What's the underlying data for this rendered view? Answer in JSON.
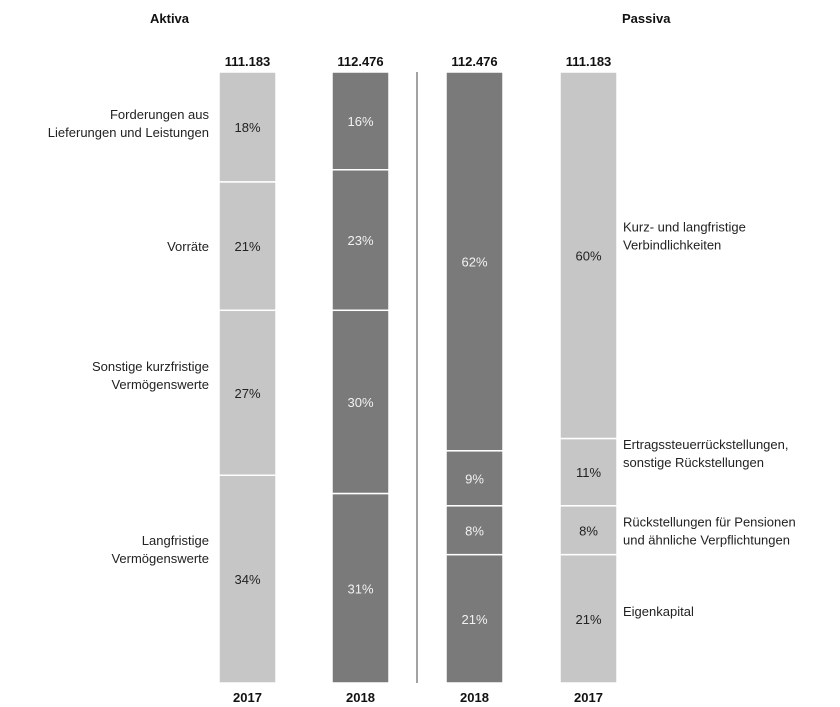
{
  "chart_data": {
    "type": "bar",
    "stacked": true,
    "headings": {
      "left": "Aktiva",
      "right": "Passiva"
    },
    "legend": "none",
    "grid": false,
    "colors": {
      "light": "#c6c6c6",
      "dark": "#7a7a7a",
      "text_dark": "#222222",
      "text_light": "#f2f2f2"
    },
    "columns": [
      {
        "year": "2017",
        "total": "111.183",
        "shade": "light",
        "side": "left",
        "segments": [
          {
            "label": "18%",
            "value": 18
          },
          {
            "label": "21%",
            "value": 21
          },
          {
            "label": "27%",
            "value": 27
          },
          {
            "label": "34%",
            "value": 34
          }
        ]
      },
      {
        "year": "2018",
        "total": "112.476",
        "shade": "dark",
        "side": "left",
        "segments": [
          {
            "label": "16%",
            "value": 16
          },
          {
            "label": "23%",
            "value": 23
          },
          {
            "label": "30%",
            "value": 30
          },
          {
            "label": "31%",
            "value": 31
          }
        ]
      },
      {
        "year": "2018",
        "total": "112.476",
        "shade": "dark",
        "side": "right",
        "segments": [
          {
            "label": "62%",
            "value": 62
          },
          {
            "label": "9%",
            "value": 9
          },
          {
            "label": "8%",
            "value": 8
          },
          {
            "label": "21%",
            "value": 21
          }
        ]
      },
      {
        "year": "2017",
        "total": "111.183",
        "shade": "light",
        "side": "right",
        "segments": [
          {
            "label": "60%",
            "value": 60
          },
          {
            "label": "11%",
            "value": 11
          },
          {
            "label": "8%",
            "value": 8
          },
          {
            "label": "21%",
            "value": 21
          }
        ]
      }
    ],
    "aktiva_categories": [
      [
        "Forderungen aus",
        "Lieferungen und Leistungen"
      ],
      [
        "Vorräte"
      ],
      [
        "Sonstige kurzfristige",
        "Vermögenswerte"
      ],
      [
        "Langfristige",
        "Vermögenswerte"
      ]
    ],
    "passiva_categories": [
      [
        "Kurz- und langfristige",
        "Verbindlichkeiten"
      ],
      [
        "Ertragssteuerrückstellungen,",
        "sonstige Rückstellungen"
      ],
      [
        "Rückstellungen für Pensionen",
        "und ähnliche Verpflichtungen"
      ],
      [
        "Eigenkapital"
      ]
    ]
  }
}
